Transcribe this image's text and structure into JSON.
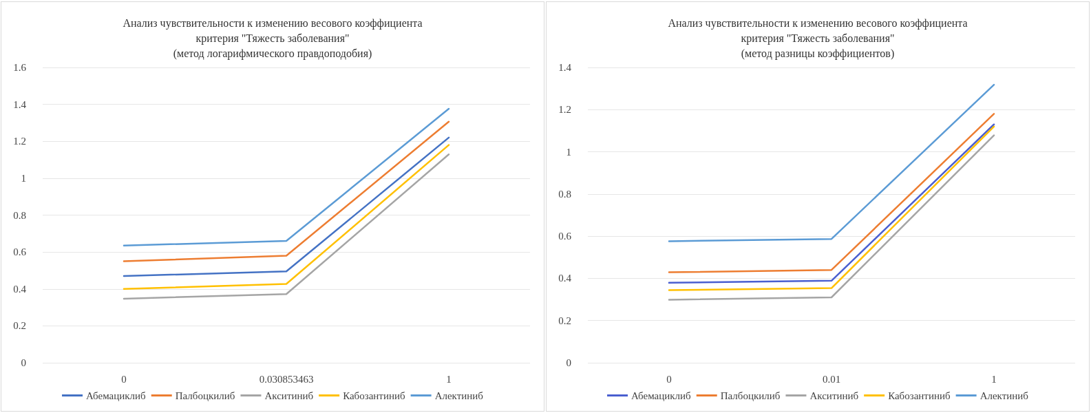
{
  "chart_data": [
    {
      "type": "line",
      "title": "Анализ чувствительности к изменению весового коэффициента\nкритерия \"Тяжесть заболевания\"\n(метод логарифмического правдоподобия)",
      "categories": [
        "0",
        "0.030853463",
        "1"
      ],
      "ylim": [
        0,
        1.6
      ],
      "yticks": [
        0,
        0.2,
        0.4,
        0.6,
        0.8,
        1,
        1.2,
        1.4,
        1.6
      ],
      "grid": "y",
      "legend": "bottom",
      "marker": "none",
      "series": [
        {
          "name": "Абемациклиб",
          "color": "#4472c4",
          "values": [
            0.47,
            0.495,
            1.22
          ]
        },
        {
          "name": "Палбоцкилиб",
          "color": "#ed7d31",
          "values": [
            0.55,
            0.58,
            1.306
          ]
        },
        {
          "name": "Акситиниб",
          "color": "#a5a5a5",
          "values": [
            0.347,
            0.372,
            1.129
          ]
        },
        {
          "name": "Кабозантиниб",
          "color": "#ffc000",
          "values": [
            0.4,
            0.427,
            1.18
          ]
        },
        {
          "name": "Алектиниб",
          "color": "#5b9bd5",
          "values": [
            0.635,
            0.66,
            1.376
          ]
        }
      ]
    },
    {
      "type": "line",
      "title": "Анализ чувствительности к изменению весового коэффициента\nкритерия \"Тяжесть заболевания\"\n(метод разницы коэффициентов)",
      "categories": [
        "0",
        "0.01",
        "1"
      ],
      "ylim": [
        0,
        1.4
      ],
      "yticks": [
        0,
        0.2,
        0.4,
        0.6,
        0.8,
        1,
        1.2,
        1.4
      ],
      "grid": "y",
      "legend": "bottom",
      "marker": "none",
      "series": [
        {
          "name": "Абемациклиб",
          "color": "#4a5fd0",
          "values": [
            0.379,
            0.389,
            1.13
          ]
        },
        {
          "name": "Палбоцкилиб",
          "color": "#ed7d31",
          "values": [
            0.429,
            0.44,
            1.18
          ]
        },
        {
          "name": "Акситиниб",
          "color": "#a5a5a5",
          "values": [
            0.299,
            0.31,
            1.078
          ]
        },
        {
          "name": "Кабозантиниб",
          "color": "#ffc000",
          "values": [
            0.344,
            0.354,
            1.12
          ]
        },
        {
          "name": "Алектиниб",
          "color": "#5b9bd5",
          "values": [
            0.576,
            0.587,
            1.318
          ]
        }
      ]
    }
  ]
}
